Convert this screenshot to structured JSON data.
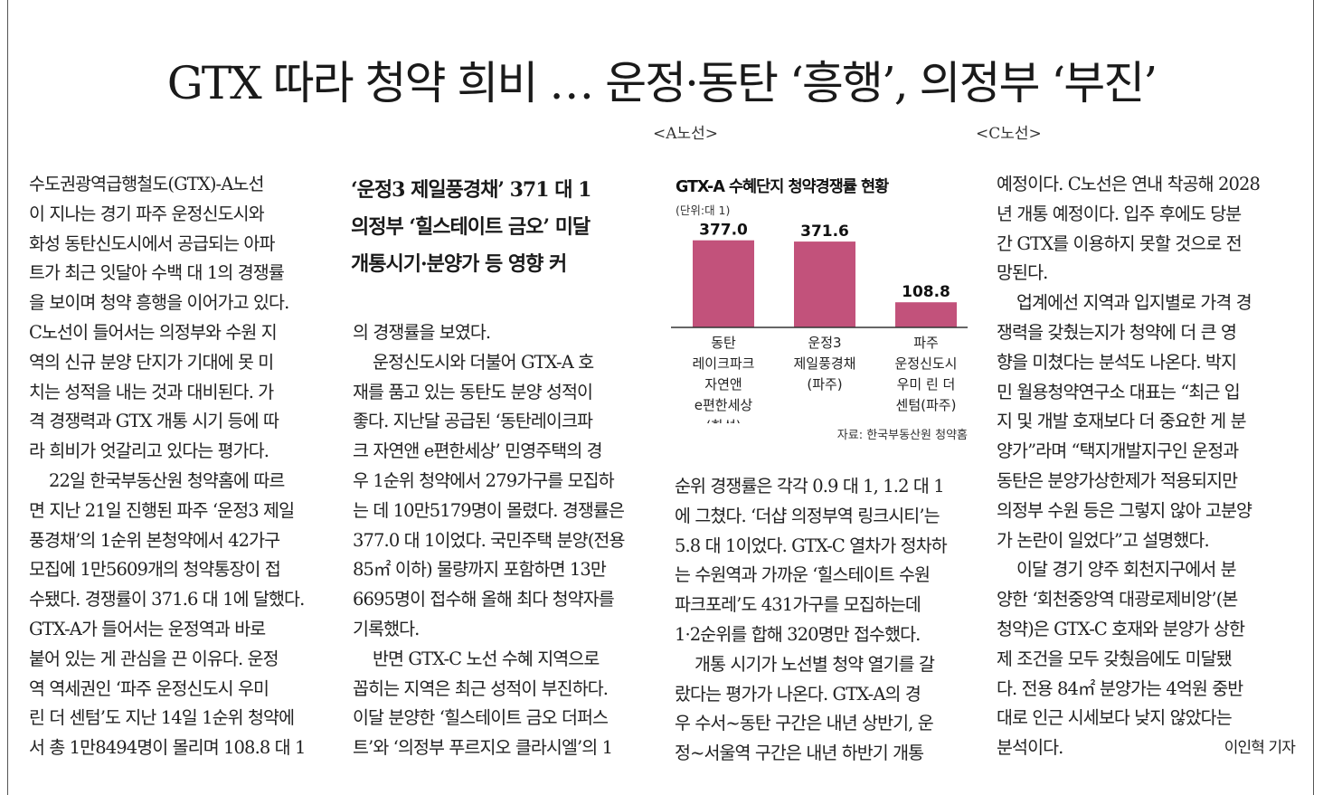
{
  "headline": "GTX 따라 청약 희비 … 운정·동탄 ‘흥행’, 의정부 ‘부진’",
  "annotations": {
    "a_line": "<A노선>",
    "c_line": "<C노선>"
  },
  "subheadline": [
    "‘운정3 제일풍경채’ 371 대 1",
    "의정부 ‘힐스테이트 금오’ 미달",
    "개통시기·분양가 등 영향 커"
  ],
  "col1": [
    "수도권광역급행철도(GTX)-A노선",
    "이 지나는 경기 파주 운정신도시와",
    "화성 동탄신도시에서 공급되는 아파",
    "트가 최근 잇달아 수백 대 1의 경쟁률",
    "을 보이며 청약 흥행을 이어가고 있다.",
    "C노선이 들어서는 의정부와 수원 지",
    "역의 신규 분양 단지가 기대에 못 미",
    "치는 성적을 내는 것과 대비된다. 가",
    "격 경쟁력과 GTX 개통 시기 등에 따",
    "라 희비가 엇갈리고 있다는 평가다.",
    "22일 한국부동산원 청약홈에 따르",
    "면 지난 21일 진행된 파주 ‘운정3 제일",
    "풍경채’의 1순위 본청약에서 42가구",
    "모집에 1만5609개의 청약통장이 접",
    "수됐다. 경쟁률이 371.6 대 1에 달했다.",
    "GTX-A가 들어서는 운정역과 바로",
    "붙어 있는 게 관심을 끈 이유다. 운정",
    "역 역세권인 ‘파주 운정신도시 우미",
    "린 더 센텀’도 지난 14일 1순위 청약에",
    "서 총 1만8494명이 몰리며 108.8 대 1"
  ],
  "col2": [
    "의 경쟁률을 보였다.",
    "운정신도시와 더불어 GTX-A 호",
    "재를 품고 있는 동탄도 분양 성적이",
    "좋다. 지난달 공급된 ‘동탄레이크파",
    "크 자연앤 e편한세상’ 민영주택의 경",
    "우 1순위 청약에서 279가구를 모집하",
    "는 데 10만5179명이 몰렸다. 경쟁률은",
    "377.0 대 1이었다. 국민주택 분양(전용",
    "85㎡ 이하) 물량까지 포함하면 13만",
    "6695명이 접수해 올해 최다 청약자를",
    "기록했다.",
    "반면 GTX-C 노선 수혜 지역으로",
    "꼽히는 지역은 최근 성적이 부진하다.",
    "이달 분양한 ‘힐스테이트 금오 더퍼스",
    "트’와 ‘의정부 푸르지오 클라시엘’의 1"
  ],
  "col3": [
    "순위 경쟁률은 각각 0.9 대 1, 1.2 대 1",
    "에 그쳤다. ‘더샵 의정부역 링크시티’는",
    "5.8 대 1이었다. GTX-C 열차가 정차하",
    "는 수원역과 가까운 ‘힐스테이트 수원",
    "파크포레’도 431가구를 모집하는데",
    "1·2순위를 합해 320명만 접수했다.",
    "개통 시기가 노선별 청약 열기를 갈",
    "랐다는 평가가 나온다. GTX-A의 경",
    "우 수서~동탄 구간은 내년 상반기, 운",
    "정~서울역 구간은 내년 하반기 개통"
  ],
  "col4": [
    "예정이다. C노선은 연내 착공해 2028",
    "년 개통 예정이다. 입주 후에도 당분",
    "간 GTX를 이용하지 못할 것으로 전",
    "망된다.",
    "업계에선 지역과 입지별로 가격 경",
    "쟁력을 갖췄는지가 청약에 더 큰 영",
    "향을 미쳤다는 분석도 나온다. 박지",
    "민 월용청약연구소 대표는 “최근 입",
    "지 및 개발 호재보다 더 중요한 게 분",
    "양가”라며 “택지개발지구인 운정과",
    "동탄은 분양가상한제가 적용되지만",
    "의정부 수원 등은 그렇지 않아 고분양",
    "가 논란이 일었다”고 설명했다.",
    "이달 경기 양주 회천지구에서 분",
    "양한 ‘회천중앙역 대광로제비앙’(본",
    "청약)은 GTX-C 호재와 분양가 상한",
    "제 조건을 모두 갖췄음에도 미달됐",
    "다. 전용 84㎡ 분양가는 4억원 중반",
    "대로 인근 시세보다 낮지 않았다는",
    "분석이다."
  ],
  "byline": "이인혁 기자",
  "chart_data": {
    "type": "bar",
    "title": "GTX-A 수혜단지 청약경쟁률 현황",
    "unit": "(단위:대 1)",
    "categories": [
      [
        "동탄",
        "레이크파크",
        "자연앤",
        "e편한세상",
        "(화성)"
      ],
      [
        "운정3",
        "제일풍경채",
        "(파주)"
      ],
      [
        "파주",
        "운정신도시",
        "우미 린 더",
        "센텀(파주)"
      ]
    ],
    "values": [
      377.0,
      371.6,
      108.8
    ],
    "value_labels": [
      "377.0",
      "371.6",
      "108.8"
    ],
    "bar_color": "#c2527b",
    "ylim": [
      0,
      400
    ],
    "source": "자료: 한국부동산원 청약홈"
  }
}
